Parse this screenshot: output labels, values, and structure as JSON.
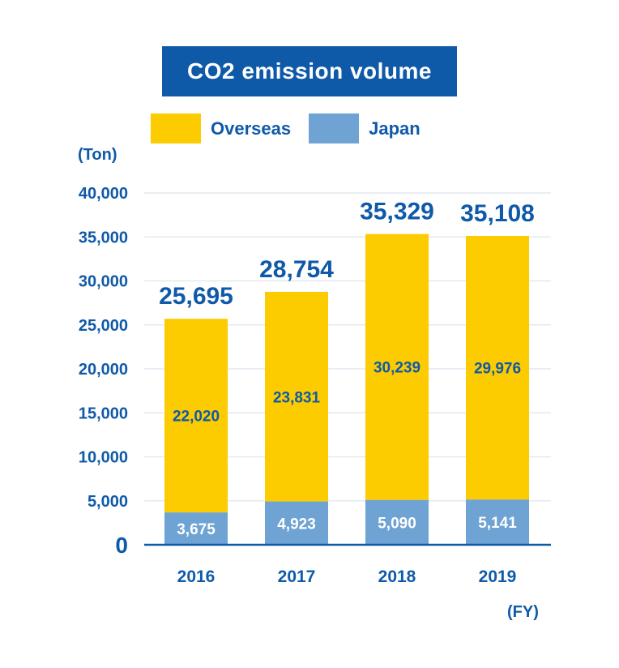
{
  "chart_data": {
    "type": "bar",
    "stacked": true,
    "title": "CO2 emission volume",
    "y_unit": "(Ton)",
    "x_unit": "(FY)",
    "categories": [
      "2016",
      "2017",
      "2018",
      "2019"
    ],
    "series": [
      {
        "name": "Japan",
        "values": [
          3675,
          4923,
          5090,
          5141
        ],
        "value_labels": [
          "3,675",
          "4,923",
          "5,090",
          "5,141"
        ],
        "color": "#6ea3d3"
      },
      {
        "name": "Overseas",
        "values": [
          22020,
          23831,
          30239,
          29976
        ],
        "value_labels": [
          "22,020",
          "23,831",
          "30,239",
          "29,976"
        ],
        "color": "#fccb00"
      }
    ],
    "totals": [
      25695,
      28754,
      35329,
      35108
    ],
    "total_labels": [
      "25,695",
      "28,754",
      "35,329",
      "35,108"
    ],
    "ylim": [
      0,
      40000
    ],
    "yticks": [
      0,
      5000,
      10000,
      15000,
      20000,
      25000,
      30000,
      35000,
      40000
    ],
    "ytick_labels": [
      "0",
      "5,000",
      "10,000",
      "15,000",
      "20,000",
      "25,000",
      "30,000",
      "35,000",
      "40,000"
    ],
    "grid": true,
    "legend_position": "top",
    "colors": {
      "title_bg": "#0f5aa8",
      "text": "#0f5aa8",
      "grid": "#e3e9f1",
      "axis": "#0f5aa8"
    }
  }
}
